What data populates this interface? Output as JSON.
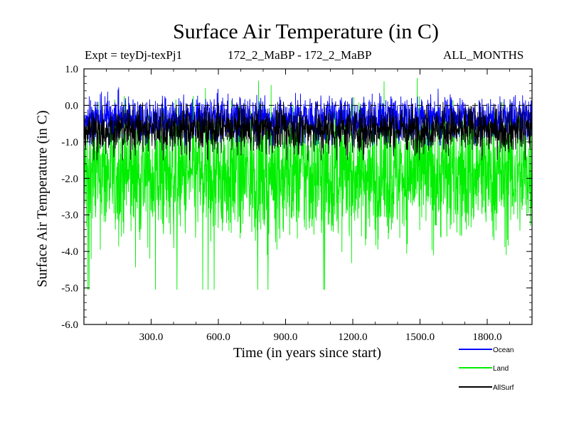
{
  "chart_data": {
    "type": "line",
    "title": "Surface Air Temperature (in C)",
    "experiment_label": "Expt = teyDj-texPj1",
    "subtitle": "172_2_MaBP - 172_2_MaBP",
    "period_label": "ALL_MONTHS",
    "xlabel": "Time (in years since start)",
    "ylabel": "Surface Air Temperature (in C)",
    "xlim": [
      0,
      2000
    ],
    "ylim": [
      -6.0,
      1.0
    ],
    "x_ticks": [
      300,
      600,
      900,
      1200,
      1500,
      1800
    ],
    "x_tick_labels": [
      "300.0",
      "600.0",
      "900.0",
      "1200.0",
      "1500.0",
      "1800.0"
    ],
    "y_ticks": [
      1.0,
      0.0,
      -1.0,
      -2.0,
      -3.0,
      -4.0,
      -5.0,
      -6.0
    ],
    "y_tick_labels": [
      "1.0",
      "0.0",
      "-1.0",
      "-2.0",
      "-3.0",
      "-4.0",
      "-5.0",
      "-6.0"
    ],
    "reference_line": 0.0,
    "series": [
      {
        "name": "Land",
        "color": "#00ee00",
        "mean": -1.9,
        "typical_range": [
          -3.3,
          -0.5
        ],
        "min": -5.05,
        "max": 0.75
      },
      {
        "name": "Ocean",
        "color": "#0000ff",
        "mean": -0.35,
        "typical_range": [
          -0.85,
          0.1
        ],
        "min": -1.1,
        "max": 0.6
      },
      {
        "name": "AllSurf",
        "color": "#000000",
        "mean": -0.65,
        "typical_range": [
          -1.2,
          -0.2
        ],
        "min": -1.5,
        "max": 0.1
      }
    ],
    "legend": [
      "Ocean",
      "Land",
      "AllSurf"
    ],
    "legend_position": "bottom-right"
  }
}
